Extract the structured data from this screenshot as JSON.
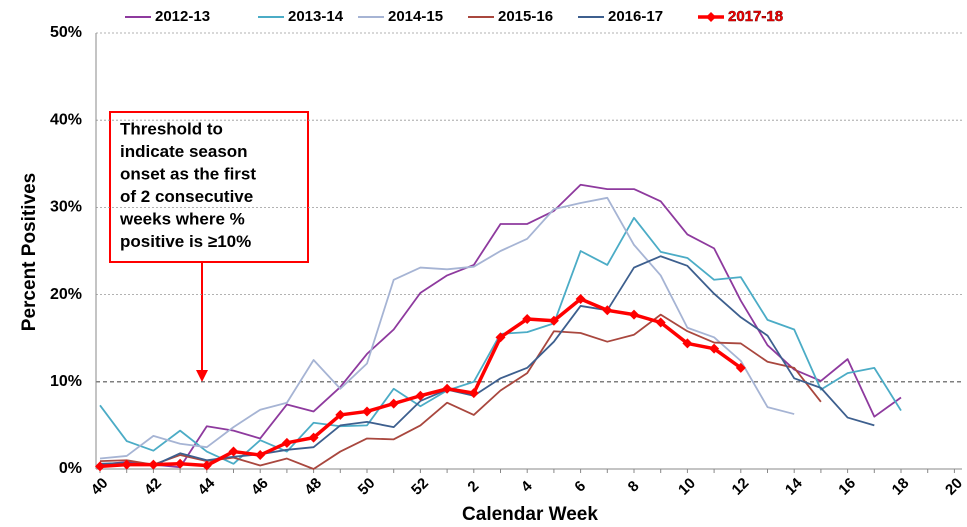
{
  "chart_data": {
    "type": "line",
    "y_label": "Percent Positives",
    "x_label": "Calendar Week",
    "annotation": [
      "Threshold to",
      "indicate season",
      "onset  as the first",
      "of 2 consecutive",
      "weeks where %",
      "positive is ≥10%"
    ],
    "categories": [
      "40",
      null,
      "42",
      null,
      "44",
      null,
      "46",
      null,
      "48",
      null,
      "50",
      null,
      "52",
      null,
      "2",
      null,
      "4",
      null,
      "6",
      null,
      "8",
      null,
      "10",
      null,
      "12",
      null,
      "14",
      null,
      "16",
      null,
      "18",
      null,
      "20"
    ],
    "ylim": [
      0,
      50
    ],
    "yticks": [
      {
        "value": 0,
        "label": "0%"
      },
      {
        "value": 10,
        "label": "10%"
      },
      {
        "value": 20,
        "label": "20%"
      },
      {
        "value": 30,
        "label": "30%"
      },
      {
        "value": 40,
        "label": "40%"
      },
      {
        "value": 50,
        "label": "50%"
      }
    ],
    "grid": true,
    "series": [
      {
        "name": "2012-13",
        "color": "#8e3a9e",
        "values": [
          0.5,
          0.8,
          0.5,
          0.2,
          4.9,
          4.4,
          3.5,
          7.4,
          6.6,
          9.4,
          13.2,
          16.0,
          20.2,
          22.2,
          23.4,
          28.1,
          28.1,
          29.6,
          32.6,
          32.1,
          32.1,
          30.7,
          26.9,
          25.3,
          19.3,
          14.2,
          11.4,
          10.1,
          12.6,
          6.0,
          8.2,
          null,
          null
        ]
      },
      {
        "name": "2013-14",
        "color": "#4bacc6",
        "values": [
          7.3,
          3.2,
          2.1,
          4.4,
          2.0,
          0.6,
          3.3,
          2.0,
          5.3,
          4.9,
          5.0,
          9.2,
          7.2,
          9.0,
          10.0,
          15.5,
          15.7,
          16.7,
          25.0,
          23.4,
          28.8,
          24.9,
          24.2,
          21.7,
          22.0,
          17.1,
          16.0,
          9.1,
          11.0,
          11.6,
          6.7,
          null,
          null
        ]
      },
      {
        "name": "2014-15",
        "color": "#a6b4d4",
        "values": [
          1.2,
          1.5,
          3.8,
          2.9,
          2.5,
          4.8,
          6.8,
          7.6,
          12.5,
          9.2,
          12.1,
          21.7,
          23.1,
          22.9,
          23.2,
          25.0,
          26.4,
          29.8,
          30.5,
          31.1,
          25.7,
          22.2,
          16.2,
          15.1,
          12.4,
          7.1,
          6.3,
          null,
          null,
          null,
          null,
          null,
          null
        ]
      },
      {
        "name": "2015-16",
        "color": "#a9473e",
        "values": [
          0.9,
          1.0,
          0.5,
          1.6,
          0.9,
          1.3,
          0.4,
          1.2,
          0.0,
          2.0,
          3.5,
          3.4,
          5.0,
          7.6,
          6.2,
          9.0,
          11.0,
          15.8,
          15.6,
          14.6,
          15.4,
          17.7,
          15.8,
          14.5,
          14.4,
          12.3,
          11.6,
          7.7,
          null,
          null,
          null,
          null,
          null
        ]
      },
      {
        "name": "2016-17",
        "color": "#3d5f8e",
        "values": [
          0.6,
          0.7,
          0.4,
          1.8,
          1.0,
          1.4,
          1.7,
          2.2,
          2.5,
          5.0,
          5.4,
          4.8,
          7.8,
          9.1,
          8.4,
          10.4,
          11.6,
          14.6,
          18.7,
          18.2,
          23.1,
          24.4,
          23.3,
          20.1,
          17.4,
          15.3,
          10.4,
          9.3,
          5.9,
          5.0,
          null,
          null,
          null
        ]
      },
      {
        "name": "2017-18",
        "color": "#ff0000",
        "marker": "diamond",
        "values": [
          0.3,
          0.5,
          0.5,
          0.6,
          0.4,
          2.0,
          1.6,
          3.0,
          3.6,
          6.2,
          6.6,
          7.5,
          8.4,
          9.2,
          8.7,
          15.1,
          17.2,
          17.0,
          19.5,
          18.2,
          17.7,
          16.8,
          14.4,
          13.8,
          11.6,
          null,
          null,
          null,
          null,
          null,
          null,
          null,
          null
        ]
      }
    ]
  }
}
